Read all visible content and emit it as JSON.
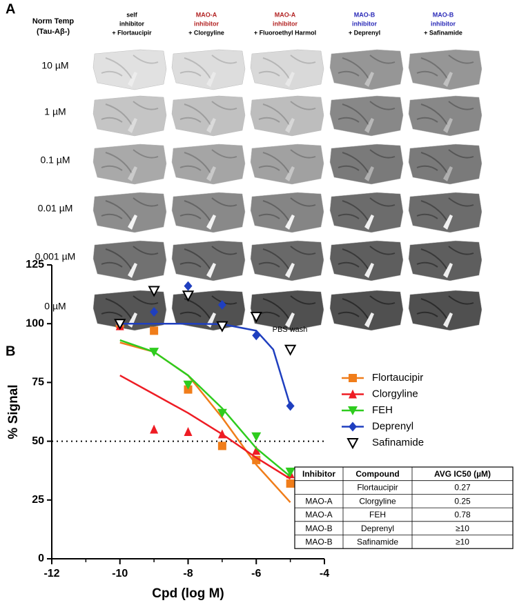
{
  "panel_a": {
    "label": "A",
    "row_header": [
      "Norm Temp",
      "(Tau-Aβ-)"
    ],
    "columns": [
      {
        "color": "#000000",
        "lines": [
          "self",
          "inhibitor",
          "+ Flortaucipir"
        ]
      },
      {
        "color": "#b22222",
        "lines": [
          "MAO-A",
          "inhibitor",
          "+ Clorgyline"
        ]
      },
      {
        "color": "#b22222",
        "lines": [
          "MAO-A",
          "inhibitor",
          "+ Fluoroethyl Harmol"
        ]
      },
      {
        "color": "#2a2ab8",
        "lines": [
          "MAO-B",
          "inhibitor",
          "+ Deprenyl"
        ]
      },
      {
        "color": "#2a2ab8",
        "lines": [
          "MAO-B",
          "inhibitor",
          "+ Safinamide"
        ]
      }
    ],
    "rows": [
      "10 µM",
      "1 µM",
      "0.1 µM",
      "0.01 µM",
      "0.001 µM",
      "0 µM"
    ],
    "footnote": "PBS wash"
  },
  "panel_b_label": "B",
  "chart_data": {
    "type": "scatter",
    "xlabel": "Cpd (log M)",
    "ylabel": "% Signal",
    "xlim": [
      -12,
      -4
    ],
    "ylim": [
      0,
      125
    ],
    "xticks": [
      -12,
      -10,
      -8,
      -6,
      -4
    ],
    "xticks_minor": [
      -11,
      -9,
      -7,
      -5
    ],
    "yticks": [
      0,
      25,
      50,
      75,
      100,
      125
    ],
    "reference_line": 50,
    "x": [
      -10,
      -9,
      -8,
      -7,
      -6,
      -5
    ],
    "legend": "right",
    "series": [
      {
        "name": "Flortaucipir",
        "color": "#f07d1a",
        "marker": "square",
        "values": [
          100,
          97,
          72,
          48,
          42,
          32
        ],
        "fit": {
          "x": [
            -10,
            -9,
            -8,
            -7,
            -6,
            -5
          ],
          "values": [
            92,
            88,
            78,
            60,
            40,
            24
          ]
        }
      },
      {
        "name": "Clorgyline",
        "color": "#ee1c24",
        "marker": "triangle",
        "values": [
          99,
          55,
          54,
          53,
          46,
          36
        ],
        "fit": {
          "x": [
            -10,
            -9,
            -8,
            -7,
            -6,
            -5
          ],
          "values": [
            78,
            70,
            62,
            53,
            43,
            34
          ]
        }
      },
      {
        "name": "FEH",
        "color": "#2ecc1e",
        "marker": "triangle-down",
        "values": [
          100,
          88,
          74,
          62,
          52,
          37
        ],
        "fit": {
          "x": [
            -10,
            -9,
            -8,
            -7,
            -6,
            -5
          ],
          "values": [
            93,
            88,
            78,
            64,
            47,
            35
          ]
        }
      },
      {
        "name": "Deprenyl",
        "color": "#1f3fbf",
        "marker": "diamond",
        "values": [
          100,
          105,
          116,
          108,
          95,
          65
        ],
        "fit": {
          "x": [
            -10,
            -9,
            -8,
            -7,
            -6,
            -5.5,
            -5
          ],
          "values": [
            100,
            100,
            100,
            99.8,
            97,
            89,
            65
          ]
        }
      },
      {
        "name": "Safinamide",
        "color": "#000000",
        "marker": "triangle-down-open",
        "values": [
          100,
          114,
          112,
          99,
          103,
          89
        ]
      }
    ]
  },
  "table": {
    "header": [
      "Inhibitor",
      "Compound",
      "AVG IC50 (µM)"
    ],
    "rows": [
      [
        null,
        "Flortaucipir",
        "0.27"
      ],
      [
        "MAO-A",
        "Clorgyline",
        "0.25"
      ],
      [
        "MAO-A",
        "FEH",
        "0.78"
      ],
      [
        "MAO-B",
        "Deprenyl",
        "≥10"
      ],
      [
        "MAO-B",
        "Safinamide",
        "≥10"
      ]
    ]
  }
}
